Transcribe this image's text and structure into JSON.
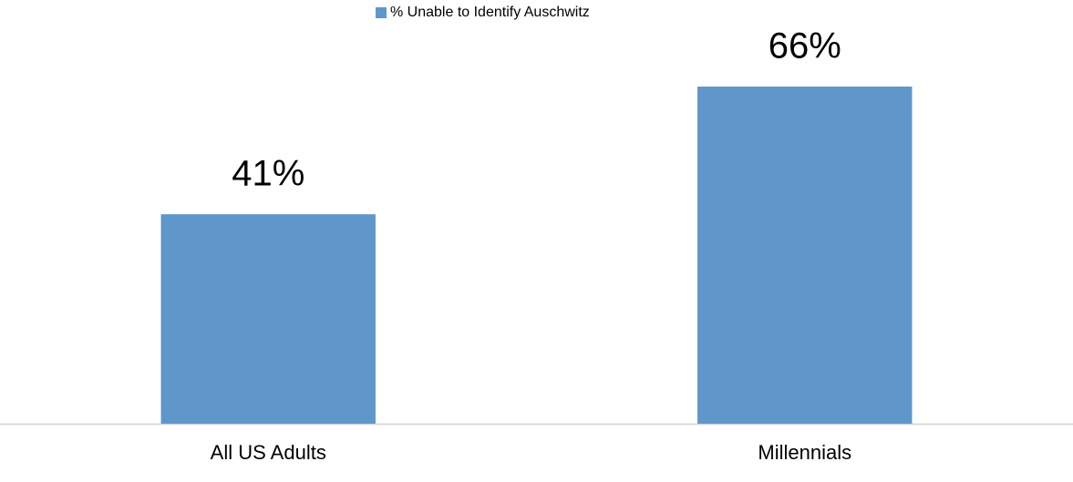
{
  "chart_data": {
    "type": "bar",
    "categories": [
      "All US Adults",
      "Millennials"
    ],
    "series": [
      {
        "name": "% Unable to Identify Auschwitz",
        "color": "#6097cb",
        "values": [
          41,
          66
        ],
        "value_labels": [
          "41%",
          "66%"
        ]
      }
    ],
    "legend": "top"
  }
}
